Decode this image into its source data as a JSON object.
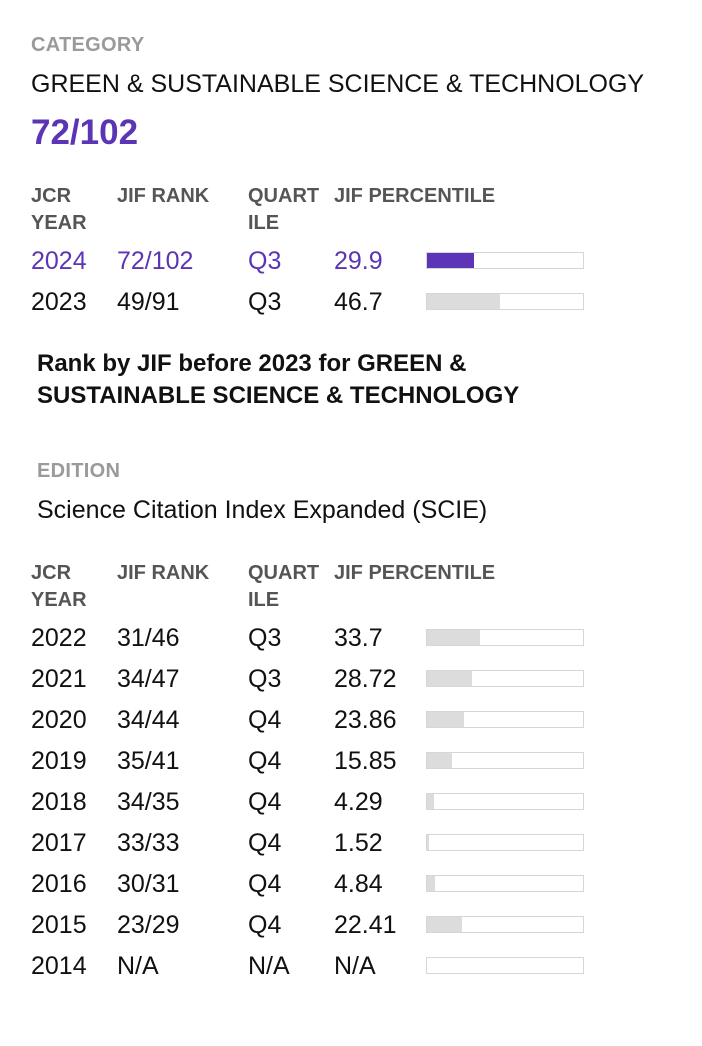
{
  "category": {
    "label": "CATEGORY",
    "name": "GREEN & SUSTAINABLE SCIENCE & TECHNOLOGY",
    "rank": "72/102"
  },
  "headers": {
    "year_line1": "JCR",
    "year_line2": "YEAR",
    "rank": "JIF RANK",
    "quartile_line1": "QUART",
    "quartile_line2": "ILE",
    "percentile": "JIF PERCENTILE"
  },
  "current_rows": [
    {
      "year": "2024",
      "rank": "72/102",
      "quartile": "Q3",
      "percentile": "29.9",
      "fill": 0.299
    },
    {
      "year": "2023",
      "rank": "49/91",
      "quartile": "Q3",
      "percentile": "46.7",
      "fill": 0.467
    }
  ],
  "note": "Rank by JIF before 2023 for GREEN & SUSTAINABLE SCIENCE & TECHNOLOGY",
  "edition": {
    "label": "EDITION",
    "name": "Science Citation Index Expanded (SCIE)"
  },
  "history_rows": [
    {
      "year": "2022",
      "rank": "31/46",
      "quartile": "Q3",
      "percentile": "33.7",
      "fill": 0.337
    },
    {
      "year": "2021",
      "rank": "34/47",
      "quartile": "Q3",
      "percentile": "28.72",
      "fill": 0.2872
    },
    {
      "year": "2020",
      "rank": "34/44",
      "quartile": "Q4",
      "percentile": "23.86",
      "fill": 0.2386
    },
    {
      "year": "2019",
      "rank": "35/41",
      "quartile": "Q4",
      "percentile": "15.85",
      "fill": 0.1585
    },
    {
      "year": "2018",
      "rank": "34/35",
      "quartile": "Q4",
      "percentile": "4.29",
      "fill": 0.0429
    },
    {
      "year": "2017",
      "rank": "33/33",
      "quartile": "Q4",
      "percentile": "1.52",
      "fill": 0.0152
    },
    {
      "year": "2016",
      "rank": "30/31",
      "quartile": "Q4",
      "percentile": "4.84",
      "fill": 0.0484
    },
    {
      "year": "2015",
      "rank": "23/29",
      "quartile": "Q4",
      "percentile": "22.41",
      "fill": 0.2241
    },
    {
      "year": "2014",
      "rank": "N/A",
      "quartile": "N/A",
      "percentile": "N/A",
      "fill": 0
    }
  ]
}
